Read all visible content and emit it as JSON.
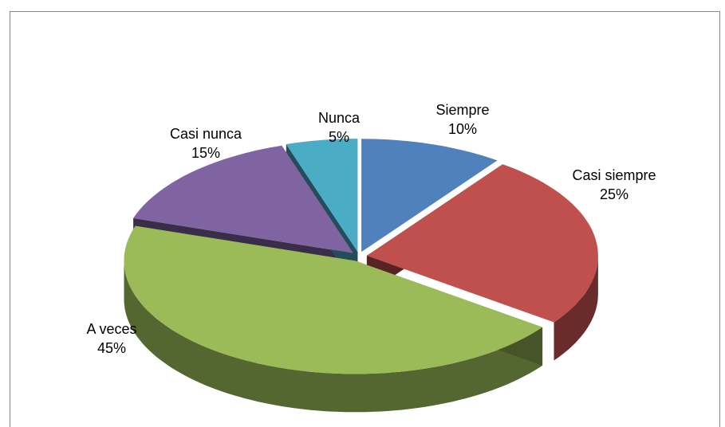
{
  "chart_data": {
    "type": "pie",
    "categories": [
      "Siempre",
      "Casi siempre",
      "A veces",
      "Casi nunca",
      "Nunca"
    ],
    "values": [
      10,
      25,
      45,
      15,
      5
    ],
    "value_labels": [
      "10%",
      "25%",
      "45%",
      "15%",
      "5%"
    ],
    "colors": [
      "#4f81bd",
      "#c0504d",
      "#9bbb59",
      "#8064a2",
      "#4bacc6"
    ]
  }
}
